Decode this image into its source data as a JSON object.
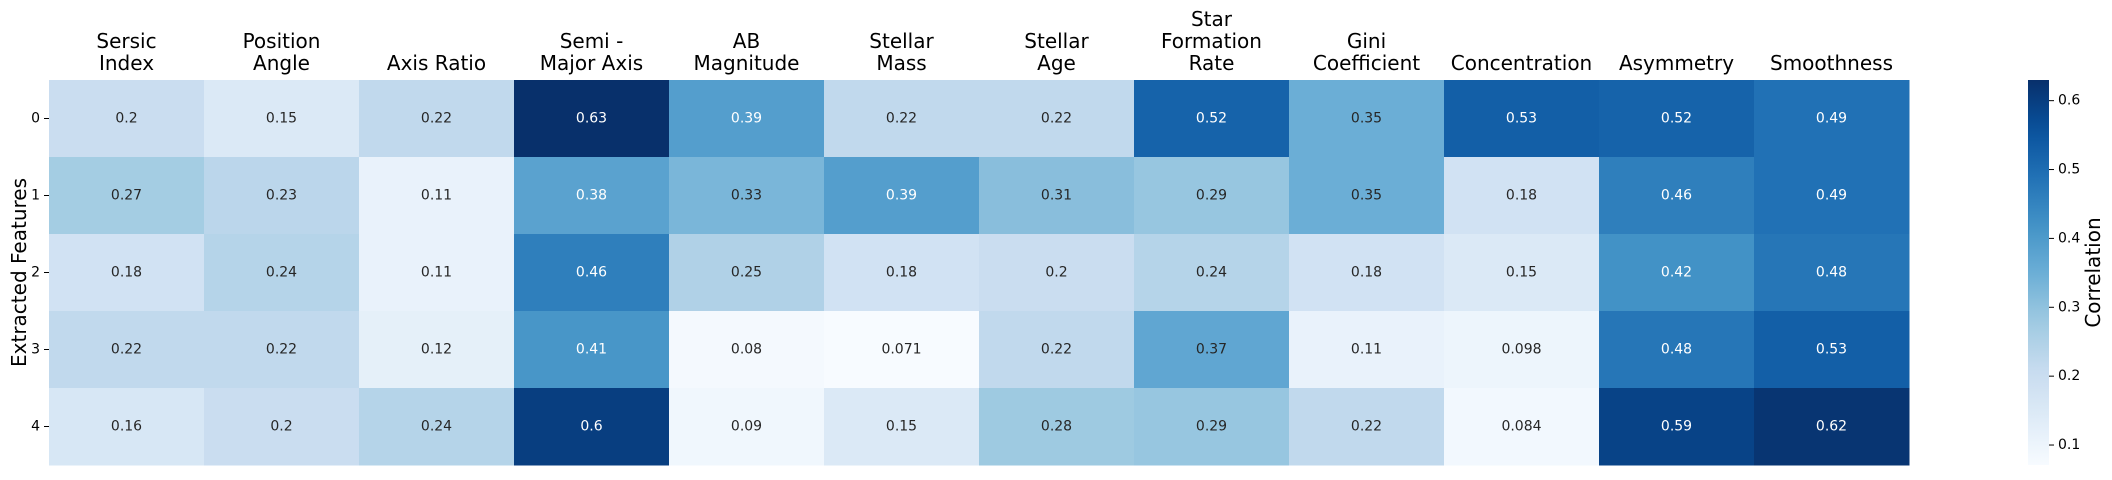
{
  "chart_data": {
    "type": "heatmap",
    "title": "",
    "xlabel": "",
    "ylabel": "Extracted Features",
    "columns": [
      [
        "Sersic",
        "Index"
      ],
      [
        "Position",
        "Angle"
      ],
      [
        "Axis Ratio"
      ],
      [
        "Semi -",
        "Major Axis"
      ],
      [
        "AB",
        "Magnitude"
      ],
      [
        "Stellar",
        "Mass"
      ],
      [
        "Stellar",
        "Age"
      ],
      [
        "Star",
        "Formation",
        "Rate"
      ],
      [
        "Gini",
        "Coefficient"
      ],
      [
        "Concentration"
      ],
      [
        "Asymmetry"
      ],
      [
        "Smoothness"
      ]
    ],
    "rows": [
      "0",
      "1",
      "2",
      "3",
      "4"
    ],
    "values": [
      [
        0.2,
        0.15,
        0.22,
        0.63,
        0.39,
        0.22,
        0.22,
        0.52,
        0.35,
        0.53,
        0.52,
        0.49
      ],
      [
        0.27,
        0.23,
        0.11,
        0.38,
        0.33,
        0.39,
        0.31,
        0.29,
        0.35,
        0.18,
        0.46,
        0.49
      ],
      [
        0.18,
        0.24,
        0.11,
        0.46,
        0.25,
        0.18,
        0.2,
        0.24,
        0.18,
        0.15,
        0.42,
        0.48
      ],
      [
        0.22,
        0.22,
        0.12,
        0.41,
        0.08,
        0.071,
        0.22,
        0.37,
        0.11,
        0.098,
        0.48,
        0.53
      ],
      [
        0.16,
        0.2,
        0.24,
        0.6,
        0.09,
        0.15,
        0.28,
        0.29,
        0.22,
        0.084,
        0.59,
        0.62
      ]
    ],
    "colorbar": {
      "label": "Correlation",
      "range": [
        0.071,
        0.63
      ],
      "ticks": [
        0.1,
        0.2,
        0.3,
        0.4,
        0.5,
        0.6
      ],
      "tick_labels": [
        "0.1",
        "0.2",
        "0.3",
        "0.4",
        "0.5",
        "0.6"
      ],
      "colormap": "Blues"
    },
    "grid": false,
    "legend": "colorbar-right"
  }
}
